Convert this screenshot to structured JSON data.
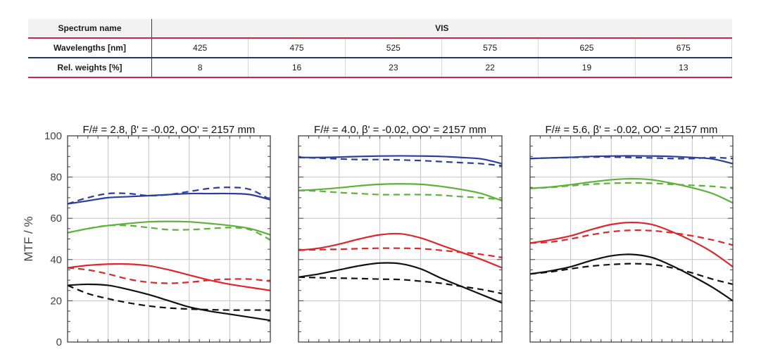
{
  "spectrum_table": {
    "row_labels": {
      "spectrum": "Spectrum name",
      "wavelengths": "Wavelengths [nm]",
      "weights": "Rel. weights [%]"
    },
    "spectrum_name": "VIS",
    "wavelengths": [
      "425",
      "475",
      "525",
      "575",
      "625",
      "675"
    ],
    "weights": [
      "8",
      "16",
      "23",
      "22",
      "19",
      "13"
    ]
  },
  "chart_data": [
    {
      "type": "line",
      "title": "F/# = 2.8, β' = -0.02, OO' = 2157 mm",
      "ylabel": "MTF / %",
      "xlabel": "",
      "ylim": [
        0,
        100
      ],
      "yticks": [
        "0",
        "20",
        "40",
        "60",
        "80",
        "100"
      ],
      "grid": true,
      "series": [
        {
          "color": "#2b3f9e",
          "dash": false,
          "x": [
            0,
            0.1,
            0.2,
            0.3,
            0.4,
            0.5,
            0.6,
            0.7,
            0.8,
            0.9,
            1.0
          ],
          "y": [
            67,
            68.5,
            70,
            70.5,
            71,
            71.5,
            72,
            72,
            72,
            71.5,
            69
          ]
        },
        {
          "color": "#2b3f9e",
          "dash": true,
          "x": [
            0,
            0.1,
            0.2,
            0.3,
            0.4,
            0.5,
            0.6,
            0.7,
            0.8,
            0.9,
            1.0
          ],
          "y": [
            67,
            70,
            72,
            72,
            71,
            71.5,
            73,
            74.5,
            75,
            74,
            69
          ]
        },
        {
          "color": "#5cb338",
          "dash": false,
          "x": [
            0,
            0.1,
            0.2,
            0.3,
            0.4,
            0.5,
            0.6,
            0.7,
            0.8,
            0.9,
            1.0
          ],
          "y": [
            53,
            55,
            56.5,
            57.5,
            58.3,
            58.5,
            58.3,
            57.5,
            56.5,
            55,
            52
          ]
        },
        {
          "color": "#5cb338",
          "dash": true,
          "x": [
            0,
            0.1,
            0.2,
            0.3,
            0.4,
            0.5,
            0.6,
            0.7,
            0.8,
            0.9,
            1.0
          ],
          "y": [
            53,
            55,
            56.5,
            56.5,
            55.5,
            54.5,
            54.5,
            55,
            55.5,
            54.5,
            49.5
          ]
        },
        {
          "color": "#e0262b",
          "dash": false,
          "x": [
            0,
            0.1,
            0.2,
            0.3,
            0.4,
            0.5,
            0.6,
            0.7,
            0.8,
            0.9,
            1.0
          ],
          "y": [
            36,
            37.2,
            37.8,
            37.8,
            37,
            35,
            32.5,
            30,
            28,
            26.5,
            25
          ]
        },
        {
          "color": "#e0262b",
          "dash": true,
          "x": [
            0,
            0.1,
            0.2,
            0.3,
            0.4,
            0.5,
            0.6,
            0.7,
            0.8,
            0.9,
            1.0
          ],
          "y": [
            36,
            35,
            33,
            30.5,
            29,
            28.5,
            29,
            30,
            30.5,
            30.5,
            29.5
          ]
        },
        {
          "color": "#111111",
          "dash": false,
          "x": [
            0,
            0.1,
            0.2,
            0.3,
            0.4,
            0.5,
            0.6,
            0.7,
            0.8,
            0.9,
            1.0
          ],
          "y": [
            27.5,
            28,
            27.5,
            25.5,
            23,
            20,
            17,
            15,
            13.5,
            12,
            10.5
          ]
        },
        {
          "color": "#111111",
          "dash": true,
          "x": [
            0,
            0.1,
            0.2,
            0.3,
            0.4,
            0.5,
            0.6,
            0.7,
            0.8,
            0.9,
            1.0
          ],
          "y": [
            27.5,
            23.5,
            21,
            19,
            17.5,
            16.5,
            16,
            15.7,
            15.5,
            15.5,
            15.5
          ]
        }
      ]
    },
    {
      "type": "line",
      "title": "F/# = 4.0, β' = -0.02, OO' = 2157 mm",
      "ylim": [
        0,
        100
      ],
      "grid": true,
      "series": [
        {
          "color": "#2b3f9e",
          "dash": false,
          "x": [
            0,
            0.1,
            0.2,
            0.3,
            0.4,
            0.5,
            0.6,
            0.7,
            0.8,
            0.9,
            1.0
          ],
          "y": [
            89.5,
            89.5,
            89.7,
            90,
            90.2,
            90.3,
            90.2,
            90,
            89.5,
            88.8,
            86.5
          ]
        },
        {
          "color": "#2b3f9e",
          "dash": true,
          "x": [
            0,
            0.1,
            0.2,
            0.3,
            0.4,
            0.5,
            0.6,
            0.7,
            0.8,
            0.9,
            1.0
          ],
          "y": [
            89.5,
            89.2,
            88.8,
            88.5,
            88.5,
            88.3,
            88,
            87.5,
            87,
            86.5,
            85.5
          ]
        },
        {
          "color": "#5cb338",
          "dash": false,
          "x": [
            0,
            0.1,
            0.2,
            0.3,
            0.4,
            0.5,
            0.6,
            0.7,
            0.8,
            0.9,
            1.0
          ],
          "y": [
            73.5,
            74,
            74.8,
            75.8,
            76.5,
            76.7,
            76.5,
            75.5,
            74,
            72,
            68.5
          ]
        },
        {
          "color": "#5cb338",
          "dash": true,
          "x": [
            0,
            0.1,
            0.2,
            0.3,
            0.4,
            0.5,
            0.6,
            0.7,
            0.8,
            0.9,
            1.0
          ],
          "y": [
            73.5,
            73.2,
            72.5,
            72,
            71.5,
            71.5,
            71.5,
            71.2,
            70.5,
            70,
            69
          ]
        },
        {
          "color": "#e0262b",
          "dash": false,
          "x": [
            0,
            0.1,
            0.2,
            0.3,
            0.4,
            0.5,
            0.6,
            0.7,
            0.8,
            0.9,
            1.0
          ],
          "y": [
            44.5,
            45.5,
            47.5,
            50,
            52,
            52.5,
            50.5,
            47,
            43.5,
            40,
            36
          ]
        },
        {
          "color": "#e0262b",
          "dash": true,
          "x": [
            0,
            0.1,
            0.2,
            0.3,
            0.4,
            0.5,
            0.6,
            0.7,
            0.8,
            0.9,
            1.0
          ],
          "y": [
            44.5,
            44.8,
            45,
            45.3,
            45.5,
            45.5,
            45.3,
            44.5,
            43.5,
            42.5,
            41
          ]
        },
        {
          "color": "#111111",
          "dash": false,
          "x": [
            0,
            0.1,
            0.2,
            0.3,
            0.4,
            0.5,
            0.6,
            0.7,
            0.8,
            0.9,
            1.0
          ],
          "y": [
            31.5,
            33,
            35,
            37,
            38.3,
            38,
            35.5,
            31,
            27,
            23,
            19
          ]
        },
        {
          "color": "#111111",
          "dash": true,
          "x": [
            0,
            0.1,
            0.2,
            0.3,
            0.4,
            0.5,
            0.6,
            0.7,
            0.8,
            0.9,
            1.0
          ],
          "y": [
            31.5,
            31.2,
            31,
            30.8,
            30.5,
            30.3,
            29.5,
            28.5,
            27,
            25.5,
            23.5
          ]
        }
      ]
    },
    {
      "type": "line",
      "title": "F/# = 5.6, β' = -0.02, OO' = 2157 mm",
      "ylim": [
        0,
        100
      ],
      "grid": true,
      "series": [
        {
          "color": "#2b3f9e",
          "dash": false,
          "x": [
            0,
            0.1,
            0.2,
            0.3,
            0.4,
            0.5,
            0.6,
            0.7,
            0.8,
            0.9,
            1.0
          ],
          "y": [
            89,
            89.3,
            89.6,
            90,
            90.2,
            90.3,
            90.2,
            90,
            89.5,
            88.8,
            86.5
          ]
        },
        {
          "color": "#2b3f9e",
          "dash": true,
          "x": [
            0,
            0.1,
            0.2,
            0.3,
            0.4,
            0.5,
            0.6,
            0.7,
            0.8,
            0.9,
            1.0
          ],
          "y": [
            89,
            89.3,
            89.5,
            89.7,
            89.7,
            89.5,
            89.3,
            89,
            89,
            89.5,
            89
          ]
        },
        {
          "color": "#5cb338",
          "dash": false,
          "x": [
            0,
            0.1,
            0.2,
            0.3,
            0.4,
            0.5,
            0.6,
            0.7,
            0.8,
            0.9,
            1.0
          ],
          "y": [
            74.5,
            75.2,
            76.3,
            77.6,
            78.7,
            79.2,
            78.7,
            77,
            74.8,
            72,
            67.5
          ]
        },
        {
          "color": "#5cb338",
          "dash": true,
          "x": [
            0,
            0.1,
            0.2,
            0.3,
            0.4,
            0.5,
            0.6,
            0.7,
            0.8,
            0.9,
            1.0
          ],
          "y": [
            74.5,
            75,
            75.8,
            76.5,
            77,
            77.2,
            77,
            76.5,
            76,
            75.5,
            74.5
          ]
        },
        {
          "color": "#e0262b",
          "dash": false,
          "x": [
            0,
            0.1,
            0.2,
            0.3,
            0.4,
            0.5,
            0.6,
            0.7,
            0.8,
            0.9,
            1.0
          ],
          "y": [
            48,
            49.5,
            51.5,
            54.5,
            57,
            58,
            57,
            53.5,
            49,
            43.5,
            36.5
          ]
        },
        {
          "color": "#e0262b",
          "dash": true,
          "x": [
            0,
            0.1,
            0.2,
            0.3,
            0.4,
            0.5,
            0.6,
            0.7,
            0.8,
            0.9,
            1.0
          ],
          "y": [
            48,
            48.5,
            50,
            52,
            53.5,
            54.2,
            54,
            53,
            51.5,
            49.5,
            47
          ]
        },
        {
          "color": "#111111",
          "dash": false,
          "x": [
            0,
            0.1,
            0.2,
            0.3,
            0.4,
            0.5,
            0.6,
            0.7,
            0.8,
            0.9,
            1.0
          ],
          "y": [
            33,
            34.5,
            36.5,
            39.5,
            41.8,
            42.5,
            41,
            37,
            32,
            26.5,
            20
          ]
        },
        {
          "color": "#111111",
          "dash": true,
          "x": [
            0,
            0.1,
            0.2,
            0.3,
            0.4,
            0.5,
            0.6,
            0.7,
            0.8,
            0.9,
            1.0
          ],
          "y": [
            33,
            34,
            35.5,
            36.8,
            37.6,
            38,
            37.6,
            36,
            33.5,
            30.5,
            28
          ]
        }
      ]
    }
  ]
}
